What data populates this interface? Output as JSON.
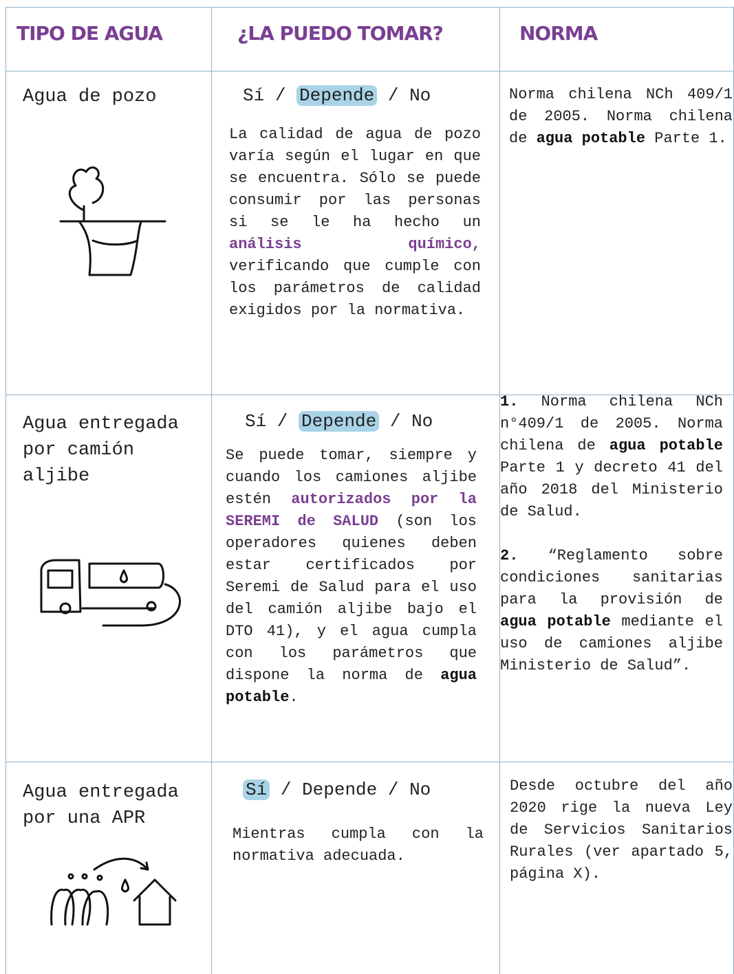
{
  "table": {
    "header": [
      "TIPO DE AGUA",
      "¿LA PUEDO TOMAR?",
      "NORMA"
    ],
    "rows": [
      {
        "type": "Agua de pozo",
        "answer": [
          {
            "text": "Sí"
          },
          {
            "text": " / "
          },
          {
            "text": "Depende",
            "highlight": true
          },
          {
            "text": " / "
          },
          {
            "text": "No"
          }
        ],
        "description": [
          {
            "text": "La calidad de agua de pozo varía según el lugar en que se encuentra. Sólo se puede consumir por las personas si se le ha hecho un "
          },
          {
            "text": "análisis químico,",
            "style": "purple"
          },
          {
            "text": " verificando que cumple con los parámetros de calidad exigidos por la normativa."
          }
        ],
        "norm": [
          [
            {
              "text": "Norma chilena NCh 409/1 de 2005. Norma chilena de "
            },
            {
              "text": "agua potable",
              "style": "bold"
            },
            {
              "text": " Parte 1."
            }
          ]
        ]
      },
      {
        "type": "Agua entregada por camión aljibe",
        "answer": [
          {
            "text": "Sí"
          },
          {
            "text": " / "
          },
          {
            "text": "Depende",
            "highlight": true
          },
          {
            "text": " / "
          },
          {
            "text": "No"
          }
        ],
        "description": [
          {
            "text": "Se puede tomar, siempre y cuando los camiones aljibe estén "
          },
          {
            "text": "autorizados por la SEREMI de SALUD",
            "style": "purple"
          },
          {
            "text": " (son los operadores quienes deben estar certificados por Seremi de Salud para el uso del camión aljibe bajo el DTO 41), y el agua cumpla con los parámetros que dispone la norma de "
          },
          {
            "text": "agua potable",
            "style": "bold"
          },
          {
            "text": "."
          }
        ],
        "norm": [
          [
            {
              "text": "1.",
              "style": "bold"
            },
            {
              "text": " Norma chilena NCh n°409/1 de 2005. Norma chilena de "
            },
            {
              "text": "agua potable",
              "style": "bold"
            },
            {
              "text": " Parte 1 y decreto 41 del año 2018 del Ministerio de Salud."
            }
          ],
          [
            {
              "text": "2.",
              "style": "bold"
            },
            {
              "text": " “Reglamento sobre condiciones sanitarias para la provisión de "
            },
            {
              "text": "agua potable",
              "style": "bold"
            },
            {
              "text": " mediante el uso de camiones aljibe Ministerio de Salud”."
            }
          ]
        ]
      },
      {
        "type": "Agua entregada por una APR",
        "answer": [
          {
            "text": "Sí",
            "highlight": true
          },
          {
            "text": " / "
          },
          {
            "text": "Depende"
          },
          {
            "text": " / "
          },
          {
            "text": "No"
          }
        ],
        "description": [
          {
            "text": "Mientras cumpla con la normativa adecuada."
          }
        ],
        "norm": [
          [
            {
              "text": "Desde octubre del año 2020 rige la nueva Ley de Servicios Sanitarios Rurales (ver apartado 5, página X)."
            }
          ]
        ]
      }
    ]
  }
}
